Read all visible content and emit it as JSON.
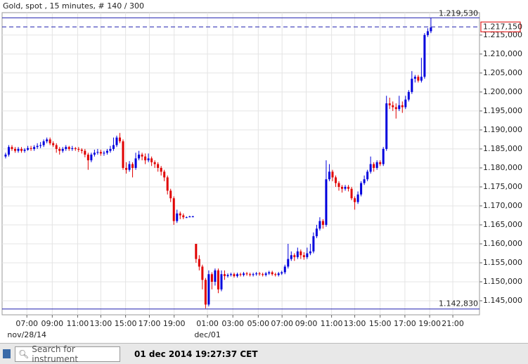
{
  "chart_data": {
    "type": "candlestick",
    "title": "Gold, spot , 15 minutes, # 140 / 300",
    "up_color": "#0000dd",
    "down_color": "#e00000",
    "grid": true,
    "ylim": [
      1.1413,
      1.2209
    ],
    "xlim": [
      -1.1,
      149.3
    ],
    "yticks": [
      {
        "value": 1.145,
        "label": "1.145,000"
      },
      {
        "value": 1.15,
        "label": "1.150,000"
      },
      {
        "value": 1.155,
        "label": "1.155,000"
      },
      {
        "value": 1.16,
        "label": "1.160,000"
      },
      {
        "value": 1.165,
        "label": "1.165,000"
      },
      {
        "value": 1.17,
        "label": "1.170,000"
      },
      {
        "value": 1.175,
        "label": "1.175,000"
      },
      {
        "value": 1.18,
        "label": "1.180,000"
      },
      {
        "value": 1.185,
        "label": "1.185,000"
      },
      {
        "value": 1.19,
        "label": "1.190,000"
      },
      {
        "value": 1.195,
        "label": "1.195,000"
      },
      {
        "value": 1.2,
        "label": "1.200,000"
      },
      {
        "value": 1.205,
        "label": "1.205,000"
      },
      {
        "value": 1.21,
        "label": "1.210,000"
      },
      {
        "value": 1.215,
        "label": "1.215,000"
      }
    ],
    "xticks": [
      {
        "value": 6.7,
        "label": "07:00"
      },
      {
        "value": 14.7,
        "label": "09:00"
      },
      {
        "value": 22.7,
        "label": "11:00"
      },
      {
        "value": 30,
        "label": "13:00"
      },
      {
        "value": 37.8,
        "label": "15:00"
      },
      {
        "value": 45.3,
        "label": "17:00"
      },
      {
        "value": 53.1,
        "label": "19:00"
      },
      {
        "value": 63.6,
        "label": "01:00"
      },
      {
        "value": 71.6,
        "label": "03:00"
      },
      {
        "value": 79.6,
        "label": "05:00"
      },
      {
        "value": 87.1,
        "label": "07:00"
      },
      {
        "value": 94.7,
        "label": "09:00"
      },
      {
        "value": 102.7,
        "label": "11:00"
      },
      {
        "value": 110,
        "label": "13:00"
      },
      {
        "value": 118,
        "label": "15:00"
      },
      {
        "value": 125.8,
        "label": "17:00"
      },
      {
        "value": 133.6,
        "label": "19:00"
      },
      {
        "value": 140.9,
        "label": "21:00"
      }
    ],
    "date_labels": [
      {
        "value": 6.7,
        "label": "nov/28/14"
      },
      {
        "value": 63.6,
        "label": "dec/01"
      }
    ],
    "high_line": {
      "value": 1.21953,
      "label": "1.219,530"
    },
    "low_line": {
      "value": 1.14283,
      "label": "1.142,830"
    },
    "last_line": {
      "value": 1.21715,
      "label": "1.217,150"
    },
    "ohlc": [
      [
        1.183,
        1.184,
        1.1825,
        1.1835
      ],
      [
        1.1835,
        1.186,
        1.183,
        1.1855
      ],
      [
        1.1855,
        1.186,
        1.1845,
        1.185
      ],
      [
        1.185,
        1.1855,
        1.184,
        1.1845
      ],
      [
        1.1845,
        1.1855,
        1.184,
        1.185
      ],
      [
        1.185,
        1.1855,
        1.184,
        1.1845
      ],
      [
        1.1845,
        1.1852,
        1.184,
        1.1848
      ],
      [
        1.1848,
        1.1858,
        1.1845,
        1.1852
      ],
      [
        1.1852,
        1.1858,
        1.1845,
        1.185
      ],
      [
        1.185,
        1.186,
        1.1845,
        1.1855
      ],
      [
        1.1855,
        1.1865,
        1.185,
        1.1858
      ],
      [
        1.1858,
        1.1868,
        1.1852,
        1.186
      ],
      [
        1.186,
        1.1875,
        1.1855,
        1.187
      ],
      [
        1.187,
        1.188,
        1.1865,
        1.1875
      ],
      [
        1.1875,
        1.188,
        1.186,
        1.1865
      ],
      [
        1.1865,
        1.187,
        1.1855,
        1.186
      ],
      [
        1.186,
        1.1865,
        1.184,
        1.185
      ],
      [
        1.185,
        1.1855,
        1.1835,
        1.1845
      ],
      [
        1.1845,
        1.1855,
        1.184,
        1.185
      ],
      [
        1.185,
        1.186,
        1.1845,
        1.1855
      ],
      [
        1.1855,
        1.1858,
        1.1845,
        1.185
      ],
      [
        1.185,
        1.1858,
        1.1845,
        1.1852
      ],
      [
        1.1852,
        1.1855,
        1.1845,
        1.185
      ],
      [
        1.185,
        1.1855,
        1.1842,
        1.1848
      ],
      [
        1.1848,
        1.1852,
        1.1838,
        1.1845
      ],
      [
        1.1845,
        1.185,
        1.1828,
        1.1835
      ],
      [
        1.1835,
        1.184,
        1.1795,
        1.182
      ],
      [
        1.182,
        1.184,
        1.1815,
        1.1835
      ],
      [
        1.1835,
        1.1848,
        1.183,
        1.184
      ],
      [
        1.184,
        1.185,
        1.1835,
        1.1842
      ],
      [
        1.1842,
        1.1848,
        1.1832,
        1.1838
      ],
      [
        1.1838,
        1.1845,
        1.1832,
        1.184
      ],
      [
        1.184,
        1.185,
        1.1835,
        1.1845
      ],
      [
        1.1845,
        1.1858,
        1.184,
        1.185
      ],
      [
        1.185,
        1.188,
        1.1845,
        1.186
      ],
      [
        1.186,
        1.1885,
        1.1855,
        1.188
      ],
      [
        1.188,
        1.1892,
        1.1865,
        1.187
      ],
      [
        1.187,
        1.1875,
        1.1795,
        1.18
      ],
      [
        1.18,
        1.1815,
        1.1785,
        1.1795
      ],
      [
        1.1795,
        1.1818,
        1.179,
        1.181
      ],
      [
        1.181,
        1.1815,
        1.1775,
        1.18
      ],
      [
        1.18,
        1.184,
        1.1795,
        1.1825
      ],
      [
        1.1825,
        1.1845,
        1.182,
        1.1835
      ],
      [
        1.1835,
        1.184,
        1.182,
        1.183
      ],
      [
        1.183,
        1.1838,
        1.181,
        1.182
      ],
      [
        1.182,
        1.1838,
        1.1815,
        1.1825
      ],
      [
        1.1825,
        1.183,
        1.1805,
        1.1815
      ],
      [
        1.1815,
        1.182,
        1.18,
        1.181
      ],
      [
        1.181,
        1.1815,
        1.179,
        1.18
      ],
      [
        1.18,
        1.1805,
        1.178,
        1.179
      ],
      [
        1.179,
        1.1795,
        1.1765,
        1.1775
      ],
      [
        1.1775,
        1.178,
        1.173,
        1.174
      ],
      [
        1.174,
        1.1745,
        1.171,
        1.172
      ],
      [
        1.172,
        1.1725,
        1.165,
        1.166
      ],
      [
        1.166,
        1.169,
        1.1655,
        1.168
      ],
      [
        1.168,
        1.1685,
        1.1665,
        1.1675
      ],
      [
        1.1675,
        1.168,
        1.1665,
        1.167
      ],
      [
        1.167,
        1.1672,
        1.1668,
        1.167
      ],
      [
        1.167,
        1.1674,
        1.167,
        1.1672
      ],
      [
        1.1672,
        1.1674,
        1.167,
        1.1672
      ],
      [
        1.16,
        1.16,
        1.155,
        1.156
      ],
      [
        1.156,
        1.157,
        1.153,
        1.154
      ],
      [
        1.154,
        1.1545,
        1.148,
        1.1505
      ],
      [
        1.1505,
        1.151,
        1.143,
        1.144
      ],
      [
        1.144,
        1.153,
        1.1435,
        1.152
      ],
      [
        1.152,
        1.1525,
        1.148,
        1.15
      ],
      [
        1.15,
        1.1535,
        1.149,
        1.153
      ],
      [
        1.153,
        1.1535,
        1.147,
        1.148
      ],
      [
        1.148,
        1.153,
        1.1475,
        1.152
      ],
      [
        1.152,
        1.153,
        1.1505,
        1.1515
      ],
      [
        1.1515,
        1.1522,
        1.1511,
        1.1518
      ],
      [
        1.1518,
        1.1524,
        1.1514,
        1.152
      ],
      [
        1.152,
        1.1524,
        1.1511,
        1.1515
      ],
      [
        1.1515,
        1.1524,
        1.1511,
        1.152
      ],
      [
        1.152,
        1.1524,
        1.1514,
        1.1518
      ],
      [
        1.1518,
        1.1526,
        1.1514,
        1.1522
      ],
      [
        1.1522,
        1.1526,
        1.1516,
        1.152
      ],
      [
        1.152,
        1.1524,
        1.1514,
        1.1518
      ],
      [
        1.1518,
        1.1524,
        1.1514,
        1.152
      ],
      [
        1.152,
        1.1526,
        1.1516,
        1.1522
      ],
      [
        1.1522,
        1.1526,
        1.1516,
        1.152
      ],
      [
        1.152,
        1.1524,
        1.1514,
        1.1518
      ],
      [
        1.1518,
        1.1526,
        1.1514,
        1.1522
      ],
      [
        1.1522,
        1.1529,
        1.1518,
        1.1525
      ],
      [
        1.1525,
        1.1529,
        1.1516,
        1.152
      ],
      [
        1.152,
        1.1524,
        1.1514,
        1.1518
      ],
      [
        1.1518,
        1.1526,
        1.1514,
        1.1522
      ],
      [
        1.1522,
        1.1529,
        1.1518,
        1.1525
      ],
      [
        1.1525,
        1.1545,
        1.152,
        1.154
      ],
      [
        1.154,
        1.16,
        1.1535,
        1.156
      ],
      [
        1.156,
        1.158,
        1.1555,
        1.157
      ],
      [
        1.157,
        1.1575,
        1.1555,
        1.1565
      ],
      [
        1.1565,
        1.159,
        1.156,
        1.158
      ],
      [
        1.158,
        1.1585,
        1.156,
        1.157
      ],
      [
        1.157,
        1.1578,
        1.1558,
        1.1565
      ],
      [
        1.1565,
        1.159,
        1.156,
        1.1575
      ],
      [
        1.1575,
        1.16,
        1.157,
        1.158
      ],
      [
        1.158,
        1.163,
        1.1575,
        1.162
      ],
      [
        1.162,
        1.165,
        1.1615,
        1.164
      ],
      [
        1.164,
        1.167,
        1.1635,
        1.166
      ],
      [
        1.166,
        1.1665,
        1.164,
        1.165
      ],
      [
        1.165,
        1.182,
        1.1645,
        1.177
      ],
      [
        1.177,
        1.181,
        1.1765,
        1.179
      ],
      [
        1.179,
        1.1795,
        1.1765,
        1.1775
      ],
      [
        1.1775,
        1.178,
        1.175,
        1.176
      ],
      [
        1.176,
        1.1765,
        1.174,
        1.175
      ],
      [
        1.175,
        1.1755,
        1.1735,
        1.1745
      ],
      [
        1.1745,
        1.1755,
        1.174,
        1.175
      ],
      [
        1.175,
        1.1755,
        1.1738,
        1.1745
      ],
      [
        1.1745,
        1.175,
        1.1715,
        1.172
      ],
      [
        1.172,
        1.1725,
        1.169,
        1.171
      ],
      [
        1.171,
        1.1738,
        1.1705,
        1.173
      ],
      [
        1.173,
        1.1765,
        1.1725,
        1.176
      ],
      [
        1.176,
        1.178,
        1.1755,
        1.177
      ],
      [
        1.177,
        1.1795,
        1.1765,
        1.179
      ],
      [
        1.179,
        1.183,
        1.1785,
        1.181
      ],
      [
        1.181,
        1.1815,
        1.179,
        1.18
      ],
      [
        1.18,
        1.182,
        1.1795,
        1.1815
      ],
      [
        1.1815,
        1.182,
        1.1805,
        1.181
      ],
      [
        1.181,
        1.1855,
        1.1805,
        1.185
      ],
      [
        1.185,
        1.199,
        1.1845,
        1.197
      ],
      [
        1.197,
        1.1985,
        1.1955,
        1.1965
      ],
      [
        1.1965,
        1.1975,
        1.195,
        1.196
      ],
      [
        1.196,
        1.197,
        1.193,
        1.1955
      ],
      [
        1.1955,
        1.199,
        1.195,
        1.1965
      ],
      [
        1.1965,
        1.1975,
        1.1945,
        1.196
      ],
      [
        1.196,
        1.199,
        1.1955,
        1.198
      ],
      [
        1.198,
        1.2005,
        1.1975,
        1.2
      ],
      [
        1.2,
        1.2055,
        1.1995,
        1.2035
      ],
      [
        1.2035,
        1.2045,
        1.2025,
        1.204
      ],
      [
        1.204,
        1.2045,
        1.2025,
        1.203
      ],
      [
        1.203,
        1.209,
        1.2025,
        1.204
      ],
      [
        1.204,
        1.2155,
        1.2035,
        1.215
      ],
      [
        1.215,
        1.2168,
        1.2145,
        1.216
      ],
      [
        1.216,
        1.2195,
        1.2155,
        1.217
      ]
    ]
  },
  "status_bar": {
    "search_placeholder": "Search for instrument",
    "timestamp": "01 dec 2014 19:27:37 CET"
  }
}
